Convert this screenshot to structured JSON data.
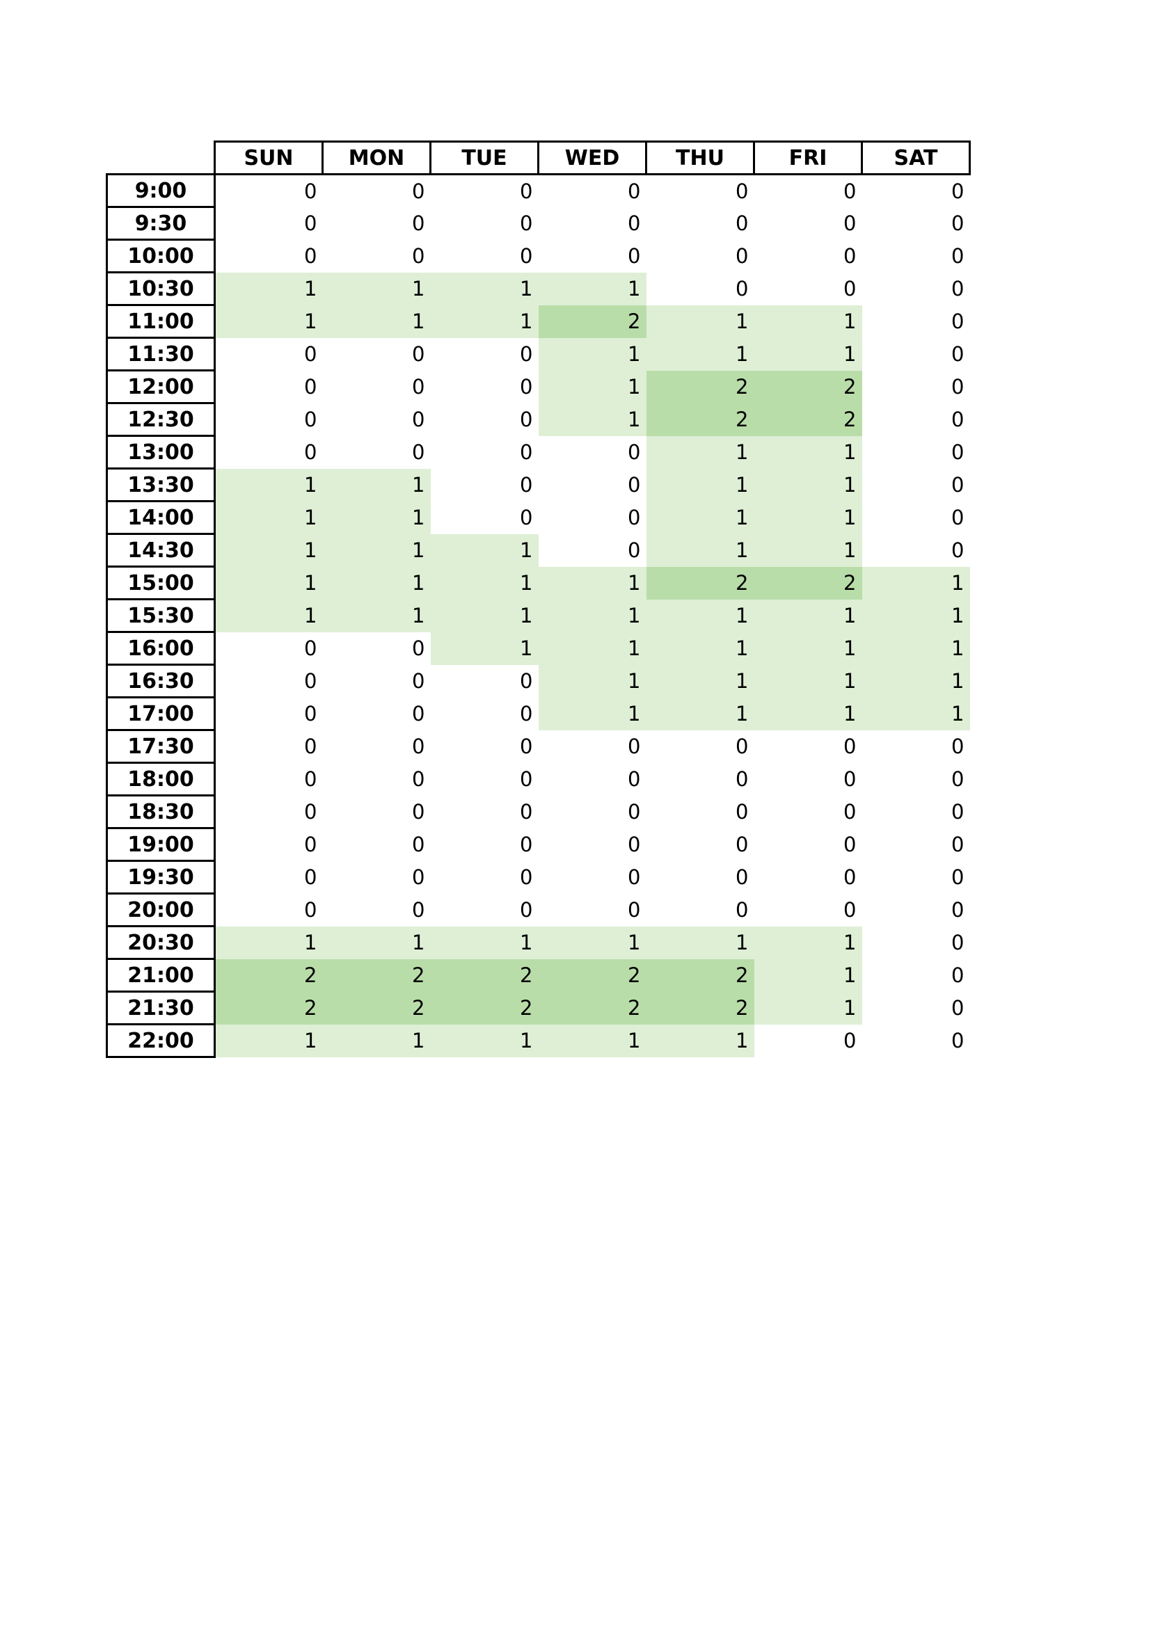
{
  "schedule": {
    "days": [
      "SUN",
      "MON",
      "TUE",
      "WED",
      "THU",
      "FRI",
      "SAT"
    ],
    "colors": {
      "level_0": "#ffffff",
      "level_1": "#deefd5",
      "level_2": "#b9dda9"
    },
    "rows": [
      {
        "time": "9:00",
        "values": [
          "0",
          "0",
          "0",
          "0",
          "0",
          "0",
          "0"
        ]
      },
      {
        "time": "9:30",
        "values": [
          "0",
          "0",
          "0",
          "0",
          "0",
          "0",
          "0"
        ]
      },
      {
        "time": "10:00",
        "values": [
          "0",
          "0",
          "0",
          "0",
          "0",
          "0",
          "0"
        ]
      },
      {
        "time": "10:30",
        "values": [
          "1",
          "1",
          "1",
          "1",
          "0",
          "0",
          "0"
        ]
      },
      {
        "time": "11:00",
        "values": [
          "1",
          "1",
          "1",
          "2",
          "1",
          "1",
          "0"
        ]
      },
      {
        "time": "11:30",
        "values": [
          "0",
          "0",
          "0",
          "1",
          "1",
          "1",
          "0"
        ]
      },
      {
        "time": "12:00",
        "values": [
          "0",
          "0",
          "0",
          "1",
          "2",
          "2",
          "0"
        ]
      },
      {
        "time": "12:30",
        "values": [
          "0",
          "0",
          "0",
          "1",
          "2",
          "2",
          "0"
        ]
      },
      {
        "time": "13:00",
        "values": [
          "0",
          "0",
          "0",
          "0",
          "1",
          "1",
          "0"
        ]
      },
      {
        "time": "13:30",
        "values": [
          "1",
          "1",
          "0",
          "0",
          "1",
          "1",
          "0"
        ]
      },
      {
        "time": "14:00",
        "values": [
          "1",
          "1",
          "0",
          "0",
          "1",
          "1",
          "0"
        ]
      },
      {
        "time": "14:30",
        "values": [
          "1",
          "1",
          "1",
          "0",
          "1",
          "1",
          "0"
        ]
      },
      {
        "time": "15:00",
        "values": [
          "1",
          "1",
          "1",
          "1",
          "2",
          "2",
          "1"
        ]
      },
      {
        "time": "15:30",
        "values": [
          "1",
          "1",
          "1",
          "1",
          "1",
          "1",
          "1"
        ]
      },
      {
        "time": "16:00",
        "values": [
          "0",
          "0",
          "1",
          "1",
          "1",
          "1",
          "1"
        ]
      },
      {
        "time": "16:30",
        "values": [
          "0",
          "0",
          "0",
          "1",
          "1",
          "1",
          "1"
        ]
      },
      {
        "time": "17:00",
        "values": [
          "0",
          "0",
          "0",
          "1",
          "1",
          "1",
          "1"
        ]
      },
      {
        "time": "17:30",
        "values": [
          "0",
          "0",
          "0",
          "0",
          "0",
          "0",
          "0"
        ]
      },
      {
        "time": "18:00",
        "values": [
          "0",
          "0",
          "0",
          "0",
          "0",
          "0",
          "0"
        ]
      },
      {
        "time": "18:30",
        "values": [
          "0",
          "0",
          "0",
          "0",
          "0",
          "0",
          "0"
        ]
      },
      {
        "time": "19:00",
        "values": [
          "0",
          "0",
          "0",
          "0",
          "0",
          "0",
          "0"
        ]
      },
      {
        "time": "19:30",
        "values": [
          "0",
          "0",
          "0",
          "0",
          "0",
          "0",
          "0"
        ]
      },
      {
        "time": "20:00",
        "values": [
          "0",
          "0",
          "0",
          "0",
          "0",
          "0",
          "0"
        ]
      },
      {
        "time": "20:30",
        "values": [
          "1",
          "1",
          "1",
          "1",
          "1",
          "1",
          "0"
        ]
      },
      {
        "time": "21:00",
        "values": [
          "2",
          "2",
          "2",
          "2",
          "2",
          "1",
          "0"
        ]
      },
      {
        "time": "21:30",
        "values": [
          "2",
          "2",
          "2",
          "2",
          "2",
          "1",
          "0"
        ]
      },
      {
        "time": "22:00",
        "values": [
          "1",
          "1",
          "1",
          "1",
          "1",
          "0",
          "0"
        ]
      }
    ]
  }
}
